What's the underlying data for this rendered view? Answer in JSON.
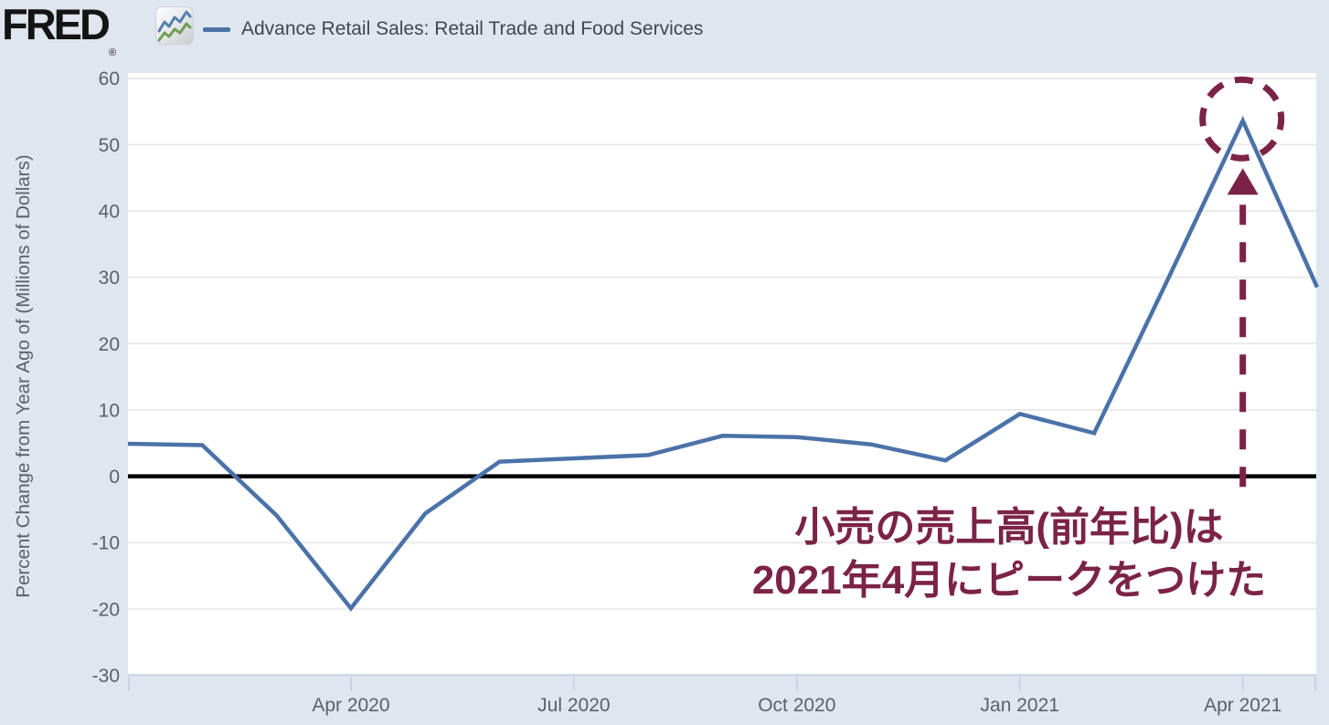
{
  "header": {
    "logo_text": "FRED",
    "registered_mark": "®",
    "logo_icon": "fred-sparkline-icon",
    "legend": {
      "series_label": "Advance Retail Sales: Retail Trade and Food Services",
      "series_color": "#4b72a8"
    }
  },
  "chart_data": {
    "type": "line",
    "title": "",
    "x": [
      "Jan 2020",
      "Feb 2020",
      "Mar 2020",
      "Apr 2020",
      "May 2020",
      "Jun 2020",
      "Jul 2020",
      "Aug 2020",
      "Sep 2020",
      "Oct 2020",
      "Nov 2020",
      "Dec 2020",
      "Jan 2021",
      "Feb 2021",
      "Mar 2021",
      "Apr 2021",
      "May 2021"
    ],
    "series": [
      {
        "name": "Advance Retail Sales: Retail Trade and Food Services",
        "color": "#4b72a8",
        "values": [
          4.9,
          4.7,
          -5.9,
          -19.9,
          -5.6,
          2.2,
          2.7,
          3.2,
          6.1,
          5.9,
          4.8,
          2.4,
          9.4,
          6.5,
          29.9,
          53.6,
          28.5
        ]
      }
    ],
    "xlabel": "",
    "ylabel": "Percent Change from Year Ago of (Millions of Dollars)",
    "ylim": [
      -30,
      60
    ],
    "yticks": [
      60,
      50,
      40,
      30,
      20,
      10,
      0,
      -10,
      -20,
      -30
    ],
    "xtick_labels": [
      "Apr 2020",
      "Jul 2020",
      "Oct 2020",
      "Jan 2021",
      "Apr 2021"
    ],
    "xtick_indices": [
      3,
      6,
      9,
      12,
      15
    ],
    "grid": true,
    "zero_line": true,
    "legend_position": "top-left"
  },
  "annotation": {
    "text_line1": "小売の売上高(前年比)は",
    "text_line2": "2021年4月にピークをつけた",
    "color": "#7b2346",
    "peak_index": 15,
    "peak_value": 53.6,
    "shapes": [
      "dashed-circle",
      "up-arrow-head",
      "dashed-vertical-line"
    ]
  },
  "colors": {
    "page_background": "#e0e6ef",
    "plot_background": "#ffffff",
    "gridline": "#eaeaea",
    "zero_line": "#000000",
    "axis_edge": "#c9d3e4",
    "tick_mark": "#c9d3e4",
    "axis_text": "#5b6169",
    "legend_text": "#40474f",
    "logo_text": "#141414",
    "icon_blue": "#5580ad",
    "icon_green": "#6f9e53"
  }
}
